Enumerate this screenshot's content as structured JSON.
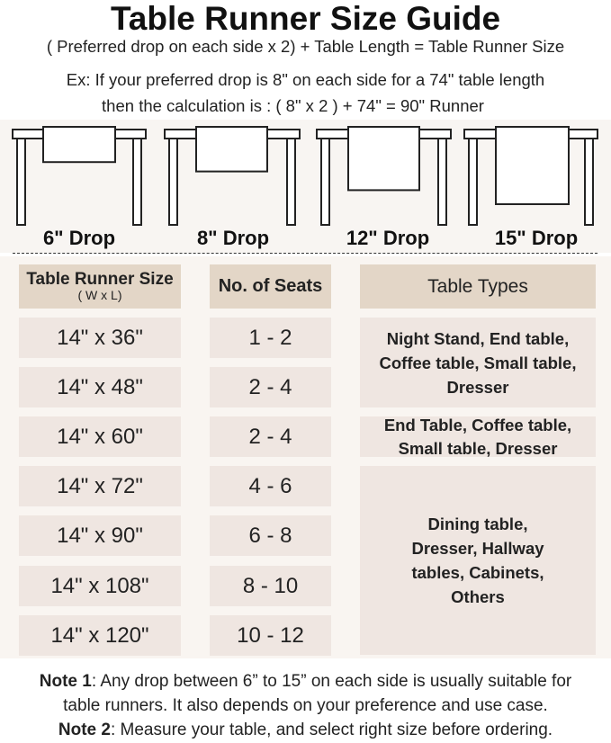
{
  "title": "Table Runner Size Guide",
  "formula": "( Preferred drop on each side x 2) + Table Length = Table Runner Size",
  "example_line1": "Ex: If your preferred drop is 8\" on each side for a 74\" table length",
  "example_line2": "then the calculation is : ( 8\" x 2 ) + 74\" = 90\" Runner",
  "drops": [
    {
      "label": "6\" Drop",
      "value": 6
    },
    {
      "label": "8\" Drop",
      "value": 8
    },
    {
      "label": "12\" Drop",
      "value": 12
    },
    {
      "label": "15\" Drop",
      "value": 15
    }
  ],
  "table": {
    "headers": {
      "size": "Table Runner Size",
      "size_sub": "( W x L)",
      "seats": "No. of Seats",
      "types": "Table Types"
    },
    "rows": [
      {
        "size": "14\" x 36\"",
        "seats": "1 - 2"
      },
      {
        "size": "14\" x 48\"",
        "seats": "2 - 4"
      },
      {
        "size": "14\" x 60\"",
        "seats": "2 - 4"
      },
      {
        "size": "14\" x 72\"",
        "seats": "4 - 6"
      },
      {
        "size": "14\" x 90\"",
        "seats": "6 - 8"
      },
      {
        "size": "14\" x 108\"",
        "seats": "8 - 10"
      },
      {
        "size": "14\" x 120\"",
        "seats": "10 - 12"
      }
    ],
    "types": [
      "Night Stand, End table, Coffee table, Small table, Dresser",
      "End Table, Coffee table, Small table, Dresser",
      "Dining table, Dresser, Hallway tables, Cabinets, Others"
    ]
  },
  "notes": [
    {
      "label": "Note 1",
      "text": ": Any drop between 6” to 15” on each side is usually suitable for",
      "text2": "table runners. It also depends on your preference and use case."
    },
    {
      "label": "Note 2",
      "text": ": Measure your table, and select right size before ordering."
    }
  ],
  "colors": {
    "header_cell": "#e3d6c7",
    "body_cell": "#efe6e1",
    "panel": "#f9f5f1"
  }
}
